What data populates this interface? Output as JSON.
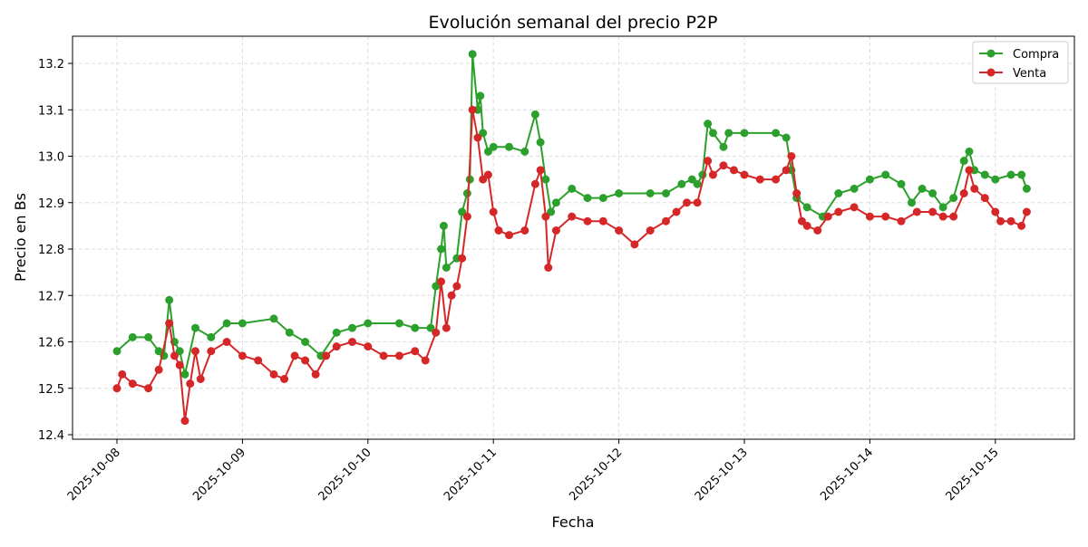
{
  "chart_data": {
    "type": "line",
    "title": "Evolución semanal del precio P2P",
    "xlabel": "Fecha",
    "ylabel": "Precio en Bs",
    "xlim": [
      "2025-10-07 15:00",
      "2025-10-15 15:00"
    ],
    "ylim": [
      12.39,
      13.26
    ],
    "xticks": [
      "2025-10-08",
      "2025-10-09",
      "2025-10-10",
      "2025-10-11",
      "2025-10-12",
      "2025-10-13",
      "2025-10-14",
      "2025-10-15"
    ],
    "yticks": [
      12.4,
      12.5,
      12.6,
      12.7,
      12.8,
      12.9,
      13.0,
      13.1,
      13.2
    ],
    "grid": true,
    "legend": "top-right",
    "series": [
      {
        "name": "Compra",
        "color": "#2ca02c",
        "points": [
          [
            "2025-10-08 00:00",
            12.58
          ],
          [
            "2025-10-08 03:00",
            12.61
          ],
          [
            "2025-10-08 06:00",
            12.61
          ],
          [
            "2025-10-08 08:00",
            12.58
          ],
          [
            "2025-10-08 09:00",
            12.57
          ],
          [
            "2025-10-08 10:00",
            12.69
          ],
          [
            "2025-10-08 11:00",
            12.6
          ],
          [
            "2025-10-08 12:00",
            12.58
          ],
          [
            "2025-10-08 13:00",
            12.53
          ],
          [
            "2025-10-08 15:00",
            12.63
          ],
          [
            "2025-10-08 18:00",
            12.61
          ],
          [
            "2025-10-08 21:00",
            12.64
          ],
          [
            "2025-10-09 00:00",
            12.64
          ],
          [
            "2025-10-09 06:00",
            12.65
          ],
          [
            "2025-10-09 09:00",
            12.62
          ],
          [
            "2025-10-09 12:00",
            12.6
          ],
          [
            "2025-10-09 15:00",
            12.57
          ],
          [
            "2025-10-09 18:00",
            12.62
          ],
          [
            "2025-10-09 21:00",
            12.63
          ],
          [
            "2025-10-10 00:00",
            12.64
          ],
          [
            "2025-10-10 06:00",
            12.64
          ],
          [
            "2025-10-10 09:00",
            12.63
          ],
          [
            "2025-10-10 12:00",
            12.63
          ],
          [
            "2025-10-10 13:00",
            12.72
          ],
          [
            "2025-10-10 14:00",
            12.8
          ],
          [
            "2025-10-10 14:30",
            12.85
          ],
          [
            "2025-10-10 15:00",
            12.76
          ],
          [
            "2025-10-10 17:00",
            12.78
          ],
          [
            "2025-10-10 18:00",
            12.88
          ],
          [
            "2025-10-10 19:00",
            12.92
          ],
          [
            "2025-10-10 19:30",
            12.95
          ],
          [
            "2025-10-10 20:00",
            13.22
          ],
          [
            "2025-10-10 21:00",
            13.1
          ],
          [
            "2025-10-10 21:30",
            13.13
          ],
          [
            "2025-10-10 22:00",
            13.05
          ],
          [
            "2025-10-10 23:00",
            13.01
          ],
          [
            "2025-10-11 00:00",
            13.02
          ],
          [
            "2025-10-11 03:00",
            13.02
          ],
          [
            "2025-10-11 06:00",
            13.01
          ],
          [
            "2025-10-11 08:00",
            13.09
          ],
          [
            "2025-10-11 09:00",
            13.03
          ],
          [
            "2025-10-11 10:00",
            12.95
          ],
          [
            "2025-10-11 11:00",
            12.88
          ],
          [
            "2025-10-11 12:00",
            12.9
          ],
          [
            "2025-10-11 15:00",
            12.93
          ],
          [
            "2025-10-11 18:00",
            12.91
          ],
          [
            "2025-10-11 21:00",
            12.91
          ],
          [
            "2025-10-12 00:00",
            12.92
          ],
          [
            "2025-10-12 06:00",
            12.92
          ],
          [
            "2025-10-12 09:00",
            12.92
          ],
          [
            "2025-10-12 12:00",
            12.94
          ],
          [
            "2025-10-12 14:00",
            12.95
          ],
          [
            "2025-10-12 15:00",
            12.94
          ],
          [
            "2025-10-12 16:00",
            12.96
          ],
          [
            "2025-10-12 17:00",
            13.07
          ],
          [
            "2025-10-12 18:00",
            13.05
          ],
          [
            "2025-10-12 20:00",
            13.02
          ],
          [
            "2025-10-12 21:00",
            13.05
          ],
          [
            "2025-10-13 00:00",
            13.05
          ],
          [
            "2025-10-13 06:00",
            13.05
          ],
          [
            "2025-10-13 08:00",
            13.04
          ],
          [
            "2025-10-13 09:00",
            12.97
          ],
          [
            "2025-10-13 10:00",
            12.91
          ],
          [
            "2025-10-13 12:00",
            12.89
          ],
          [
            "2025-10-13 15:00",
            12.87
          ],
          [
            "2025-10-13 18:00",
            12.92
          ],
          [
            "2025-10-13 21:00",
            12.93
          ],
          [
            "2025-10-14 00:00",
            12.95
          ],
          [
            "2025-10-14 03:00",
            12.96
          ],
          [
            "2025-10-14 06:00",
            12.94
          ],
          [
            "2025-10-14 08:00",
            12.9
          ],
          [
            "2025-10-14 10:00",
            12.93
          ],
          [
            "2025-10-14 12:00",
            12.92
          ],
          [
            "2025-10-14 14:00",
            12.89
          ],
          [
            "2025-10-14 16:00",
            12.91
          ],
          [
            "2025-10-14 18:00",
            12.99
          ],
          [
            "2025-10-14 19:00",
            13.01
          ],
          [
            "2025-10-14 20:00",
            12.97
          ],
          [
            "2025-10-14 22:00",
            12.96
          ],
          [
            "2025-10-15 00:00",
            12.95
          ],
          [
            "2025-10-15 03:00",
            12.96
          ],
          [
            "2025-10-15 05:00",
            12.96
          ],
          [
            "2025-10-15 06:00",
            12.93
          ]
        ]
      },
      {
        "name": "Venta",
        "color": "#d62728",
        "points": [
          [
            "2025-10-08 00:00",
            12.5
          ],
          [
            "2025-10-08 01:00",
            12.53
          ],
          [
            "2025-10-08 03:00",
            12.51
          ],
          [
            "2025-10-08 06:00",
            12.5
          ],
          [
            "2025-10-08 08:00",
            12.54
          ],
          [
            "2025-10-08 10:00",
            12.64
          ],
          [
            "2025-10-08 11:00",
            12.57
          ],
          [
            "2025-10-08 12:00",
            12.55
          ],
          [
            "2025-10-08 13:00",
            12.43
          ],
          [
            "2025-10-08 14:00",
            12.51
          ],
          [
            "2025-10-08 15:00",
            12.58
          ],
          [
            "2025-10-08 16:00",
            12.52
          ],
          [
            "2025-10-08 18:00",
            12.58
          ],
          [
            "2025-10-08 21:00",
            12.6
          ],
          [
            "2025-10-09 00:00",
            12.57
          ],
          [
            "2025-10-09 03:00",
            12.56
          ],
          [
            "2025-10-09 06:00",
            12.53
          ],
          [
            "2025-10-09 08:00",
            12.52
          ],
          [
            "2025-10-09 10:00",
            12.57
          ],
          [
            "2025-10-09 12:00",
            12.56
          ],
          [
            "2025-10-09 14:00",
            12.53
          ],
          [
            "2025-10-09 16:00",
            12.57
          ],
          [
            "2025-10-09 18:00",
            12.59
          ],
          [
            "2025-10-09 21:00",
            12.6
          ],
          [
            "2025-10-10 00:00",
            12.59
          ],
          [
            "2025-10-10 03:00",
            12.57
          ],
          [
            "2025-10-10 06:00",
            12.57
          ],
          [
            "2025-10-10 09:00",
            12.58
          ],
          [
            "2025-10-10 11:00",
            12.56
          ],
          [
            "2025-10-10 13:00",
            12.62
          ],
          [
            "2025-10-10 14:00",
            12.73
          ],
          [
            "2025-10-10 15:00",
            12.63
          ],
          [
            "2025-10-10 16:00",
            12.7
          ],
          [
            "2025-10-10 17:00",
            12.72
          ],
          [
            "2025-10-10 18:00",
            12.78
          ],
          [
            "2025-10-10 19:00",
            12.87
          ],
          [
            "2025-10-10 20:00",
            13.1
          ],
          [
            "2025-10-10 21:00",
            13.04
          ],
          [
            "2025-10-10 22:00",
            12.95
          ],
          [
            "2025-10-10 23:00",
            12.96
          ],
          [
            "2025-10-11 00:00",
            12.88
          ],
          [
            "2025-10-11 01:00",
            12.84
          ],
          [
            "2025-10-11 03:00",
            12.83
          ],
          [
            "2025-10-11 06:00",
            12.84
          ],
          [
            "2025-10-11 08:00",
            12.94
          ],
          [
            "2025-10-11 09:00",
            12.97
          ],
          [
            "2025-10-11 10:00",
            12.87
          ],
          [
            "2025-10-11 10:30",
            12.76
          ],
          [
            "2025-10-11 12:00",
            12.84
          ],
          [
            "2025-10-11 15:00",
            12.87
          ],
          [
            "2025-10-11 18:00",
            12.86
          ],
          [
            "2025-10-11 21:00",
            12.86
          ],
          [
            "2025-10-12 00:00",
            12.84
          ],
          [
            "2025-10-12 03:00",
            12.81
          ],
          [
            "2025-10-12 06:00",
            12.84
          ],
          [
            "2025-10-12 09:00",
            12.86
          ],
          [
            "2025-10-12 11:00",
            12.88
          ],
          [
            "2025-10-12 13:00",
            12.9
          ],
          [
            "2025-10-12 15:00",
            12.9
          ],
          [
            "2025-10-12 17:00",
            12.99
          ],
          [
            "2025-10-12 18:00",
            12.96
          ],
          [
            "2025-10-12 20:00",
            12.98
          ],
          [
            "2025-10-12 22:00",
            12.97
          ],
          [
            "2025-10-13 00:00",
            12.96
          ],
          [
            "2025-10-13 03:00",
            12.95
          ],
          [
            "2025-10-13 06:00",
            12.95
          ],
          [
            "2025-10-13 08:00",
            12.97
          ],
          [
            "2025-10-13 09:00",
            13.0
          ],
          [
            "2025-10-13 10:00",
            12.92
          ],
          [
            "2025-10-13 11:00",
            12.86
          ],
          [
            "2025-10-13 12:00",
            12.85
          ],
          [
            "2025-10-13 14:00",
            12.84
          ],
          [
            "2025-10-13 16:00",
            12.87
          ],
          [
            "2025-10-13 18:00",
            12.88
          ],
          [
            "2025-10-13 21:00",
            12.89
          ],
          [
            "2025-10-14 00:00",
            12.87
          ],
          [
            "2025-10-14 03:00",
            12.87
          ],
          [
            "2025-10-14 06:00",
            12.86
          ],
          [
            "2025-10-14 09:00",
            12.88
          ],
          [
            "2025-10-14 12:00",
            12.88
          ],
          [
            "2025-10-14 14:00",
            12.87
          ],
          [
            "2025-10-14 16:00",
            12.87
          ],
          [
            "2025-10-14 18:00",
            12.92
          ],
          [
            "2025-10-14 19:00",
            12.97
          ],
          [
            "2025-10-14 20:00",
            12.93
          ],
          [
            "2025-10-14 22:00",
            12.91
          ],
          [
            "2025-10-15 00:00",
            12.88
          ],
          [
            "2025-10-15 01:00",
            12.86
          ],
          [
            "2025-10-15 03:00",
            12.86
          ],
          [
            "2025-10-15 05:00",
            12.85
          ],
          [
            "2025-10-15 06:00",
            12.88
          ]
        ]
      }
    ]
  }
}
